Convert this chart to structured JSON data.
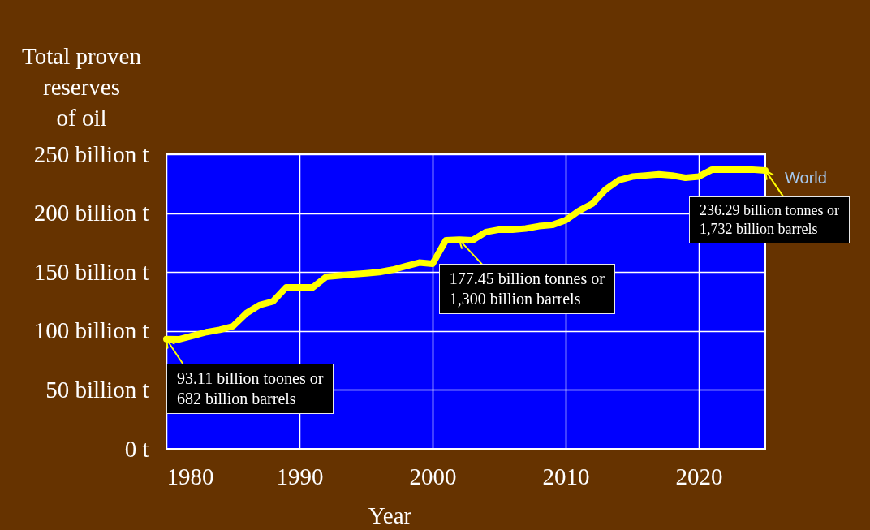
{
  "chart_data": {
    "type": "line",
    "xlabel": "Year",
    "ylabel": "Total proven\nreserves\nof oil",
    "x": [
      1980,
      1981,
      1982,
      1983,
      1984,
      1985,
      1986,
      1987,
      1988,
      1989,
      1990,
      1991,
      1992,
      1993,
      1994,
      1995,
      1996,
      1997,
      1998,
      1999,
      2000,
      2001,
      2002,
      2003,
      2004,
      2005,
      2006,
      2007,
      2008,
      2009,
      2010,
      2011,
      2012,
      2013,
      2014,
      2015,
      2016,
      2017,
      2018,
      2019,
      2020,
      2021,
      2022,
      2023,
      2024,
      2025
    ],
    "series": [
      {
        "name": "World",
        "color": "#ffff00",
        "values": [
          93.11,
          93,
          96,
          99,
          101,
          104,
          115,
          122,
          125,
          137,
          137,
          137,
          146,
          147,
          148,
          149,
          150,
          152,
          155,
          158,
          157,
          177,
          177.45,
          177,
          184,
          186,
          186,
          187,
          189,
          190,
          194,
          202,
          208,
          220,
          228,
          231,
          232,
          233,
          232,
          230,
          231,
          237,
          237,
          237,
          237,
          236.29
        ]
      }
    ],
    "xlim": [
      1980,
      2025
    ],
    "ylim": [
      0,
      250
    ],
    "xticks": [
      1980,
      1990,
      2000,
      2010,
      2020
    ],
    "yticks": [
      {
        "value": 0,
        "label": "0 t"
      },
      {
        "value": 50,
        "label": "50 billion t"
      },
      {
        "value": 100,
        "label": "100 billion t"
      },
      {
        "value": 150,
        "label": "150 billion t"
      },
      {
        "value": 200,
        "label": "200 billion t"
      },
      {
        "value": 250,
        "label": "250 billion t"
      }
    ],
    "grid": true,
    "line_style": "solid",
    "annotations": [
      {
        "text": "93.11 billion toones or\n682 billion barrels",
        "x": 1980,
        "y": 93.11
      },
      {
        "text": "177.45 billion tonnes or\n1,300 billion barrels",
        "x": 2002,
        "y": 177.45
      },
      {
        "text": "236.29 billion tonnes or\n1,732 billion barrels",
        "x": 2025,
        "y": 236.29
      }
    ]
  }
}
